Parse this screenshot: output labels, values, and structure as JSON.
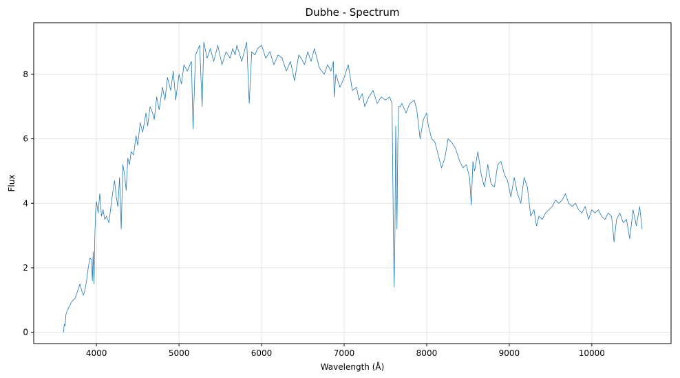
{
  "chart_data": {
    "type": "line",
    "title": "Dubhe - Spectrum",
    "xlabel": "Wavelength (Å)",
    "ylabel": "Flux",
    "xlim": [
      3240,
      10960
    ],
    "ylim": [
      -0.35,
      9.6
    ],
    "xticks": [
      "4000",
      "5000",
      "6000",
      "7000",
      "8000",
      "9000",
      "10000"
    ],
    "yticks": [
      "0",
      "2",
      "4",
      "6",
      "8"
    ],
    "xtick_values": [
      4000,
      5000,
      6000,
      7000,
      8000,
      9000,
      10000
    ],
    "ytick_values": [
      0,
      2,
      4,
      6,
      8
    ],
    "grid": true,
    "line_color": "#1f77b4",
    "series": [
      {
        "x": [
          3600,
          3610,
          3620,
          3630,
          3650,
          3680,
          3700,
          3720,
          3740,
          3760,
          3780,
          3800,
          3820,
          3840,
          3860,
          3880,
          3900,
          3920,
          3940,
          3950,
          3960,
          3970,
          3980,
          3990,
          4000,
          4020,
          4040,
          4060,
          4080,
          4100,
          4120,
          4150,
          4180,
          4200,
          4220,
          4240,
          4260,
          4280,
          4300,
          4320,
          4340,
          4360,
          4380,
          4400,
          4420,
          4450,
          4480,
          4500,
          4530,
          4560,
          4600,
          4620,
          4650,
          4680,
          4700,
          4730,
          4760,
          4800,
          4830,
          4860,
          4900,
          4930,
          4960,
          5000,
          5030,
          5060,
          5100,
          5150,
          5170,
          5200,
          5250,
          5280,
          5300,
          5340,
          5380,
          5420,
          5470,
          5520,
          5570,
          5620,
          5650,
          5680,
          5700,
          5760,
          5820,
          5850,
          5880,
          5920,
          5950,
          6000,
          6050,
          6100,
          6150,
          6200,
          6250,
          6300,
          6350,
          6400,
          6450,
          6480,
          6520,
          6560,
          6600,
          6640,
          6700,
          6760,
          6800,
          6840,
          6870,
          6880,
          6900,
          6950,
          7000,
          7050,
          7100,
          7150,
          7180,
          7220,
          7250,
          7300,
          7350,
          7400,
          7450,
          7500,
          7550,
          7580,
          7595,
          7605,
          7615,
          7625,
          7640,
          7650,
          7660,
          7680,
          7700,
          7750,
          7780,
          7800,
          7850,
          7880,
          7920,
          7960,
          8000,
          8020,
          8060,
          8100,
          8140,
          8180,
          8220,
          8260,
          8300,
          8350,
          8400,
          8440,
          8480,
          8520,
          8540,
          8560,
          8580,
          8620,
          8660,
          8700,
          8740,
          8780,
          8820,
          8860,
          8900,
          8940,
          8980,
          9020,
          9060,
          9100,
          9140,
          9180,
          9220,
          9260,
          9300,
          9330,
          9360,
          9400,
          9440,
          9480,
          9520,
          9560,
          9600,
          9640,
          9680,
          9720,
          9760,
          9800,
          9840,
          9880,
          9920,
          9960,
          10000,
          10040,
          10080,
          10120,
          10160,
          10200,
          10240,
          10270,
          10300,
          10340,
          10380,
          10420,
          10460,
          10500,
          10540,
          10580,
          10610
        ],
        "y": [
          0.0,
          0.25,
          0.2,
          0.55,
          0.7,
          0.85,
          0.95,
          1.0,
          1.05,
          1.2,
          1.35,
          1.5,
          1.3,
          1.15,
          1.3,
          1.6,
          2.0,
          2.3,
          2.25,
          1.6,
          2.5,
          1.5,
          3.0,
          3.8,
          4.05,
          3.7,
          4.3,
          3.6,
          3.8,
          3.5,
          3.6,
          3.4,
          4.0,
          4.4,
          4.7,
          4.2,
          3.9,
          4.8,
          3.2,
          5.2,
          4.9,
          4.4,
          5.4,
          5.2,
          5.6,
          5.5,
          6.1,
          5.8,
          6.5,
          6.2,
          6.8,
          6.4,
          7.0,
          6.8,
          6.6,
          7.3,
          6.9,
          7.6,
          7.2,
          7.9,
          7.5,
          8.1,
          7.2,
          8.0,
          7.7,
          8.3,
          8.1,
          8.4,
          6.3,
          8.6,
          8.9,
          7.0,
          9.0,
          8.5,
          8.8,
          8.4,
          8.9,
          8.3,
          8.7,
          8.5,
          8.8,
          8.6,
          8.9,
          8.4,
          9.0,
          7.1,
          8.7,
          8.6,
          8.8,
          8.9,
          8.5,
          8.7,
          8.3,
          8.6,
          8.5,
          8.1,
          8.4,
          7.8,
          8.6,
          8.5,
          8.3,
          8.7,
          8.4,
          8.8,
          8.2,
          8.0,
          8.3,
          8.1,
          8.4,
          7.3,
          8.0,
          7.6,
          7.9,
          8.3,
          7.5,
          7.6,
          7.2,
          7.4,
          7.0,
          7.3,
          7.5,
          7.1,
          7.3,
          7.2,
          7.3,
          7.1,
          3.5,
          1.4,
          3.0,
          6.4,
          3.2,
          5.8,
          7.0,
          7.0,
          7.1,
          6.8,
          7.0,
          7.1,
          7.2,
          6.9,
          6.0,
          6.6,
          6.8,
          6.4,
          6.0,
          5.9,
          5.5,
          5.1,
          5.4,
          6.0,
          5.9,
          5.7,
          5.3,
          5.1,
          5.2,
          4.8,
          3.95,
          5.3,
          5.0,
          5.6,
          4.9,
          4.5,
          5.2,
          4.6,
          4.5,
          5.2,
          5.3,
          4.9,
          4.7,
          4.2,
          4.8,
          4.3,
          4.0,
          4.8,
          4.5,
          3.6,
          3.8,
          3.3,
          3.6,
          3.5,
          3.7,
          3.8,
          3.9,
          4.1,
          4.0,
          4.1,
          4.3,
          4.0,
          3.9,
          4.0,
          3.8,
          3.7,
          3.9,
          3.5,
          3.8,
          3.7,
          3.8,
          3.6,
          3.5,
          3.7,
          3.6,
          2.8,
          3.5,
          3.7,
          3.4,
          3.5,
          2.9,
          3.8,
          3.3,
          3.9,
          3.2
        ]
      }
    ]
  }
}
